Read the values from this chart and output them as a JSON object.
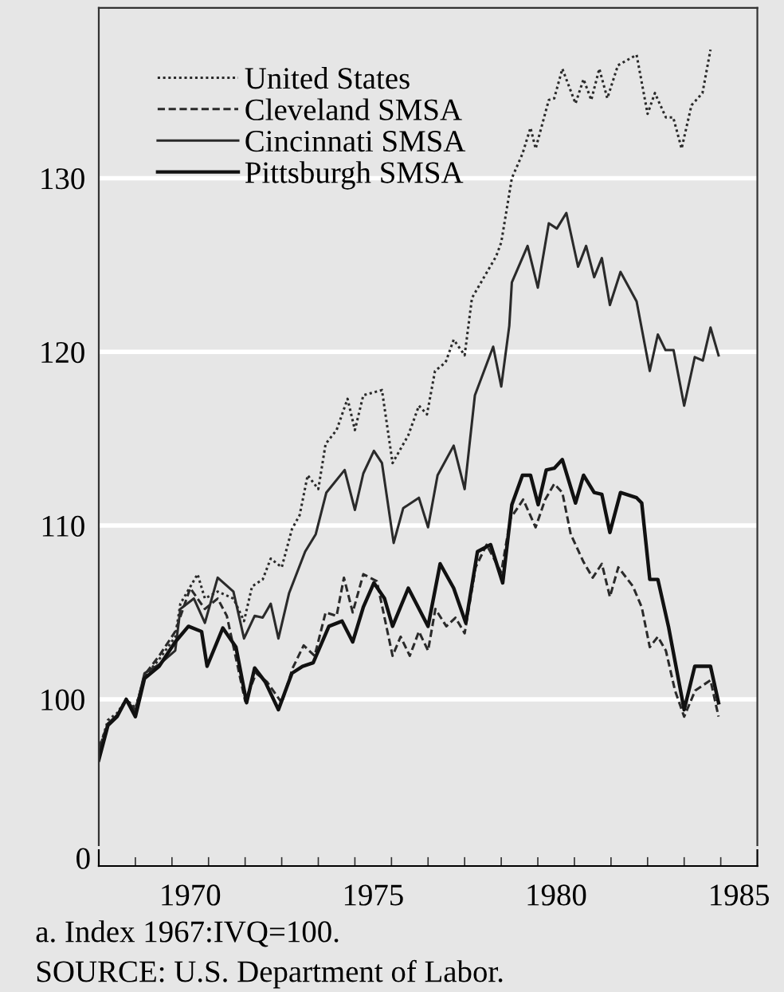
{
  "chart_data": [
    {
      "type": "line",
      "annotations": [
        "a. Index 1967:IVQ=100.",
        "SOURCE: U.S. Department of Labor."
      ],
      "xlim": [
        1968,
        1986
      ],
      "xticks": [
        {
          "value": 1969,
          "label": null
        },
        {
          "value": 1970,
          "label": null
        },
        {
          "value": 1970.5,
          "label": "1970"
        },
        {
          "value": 1971,
          "label": null
        },
        {
          "value": 1972,
          "label": null
        },
        {
          "value": 1973,
          "label": null
        },
        {
          "value": 1974,
          "label": null
        },
        {
          "value": 1975,
          "label": null
        },
        {
          "value": 1975.5,
          "label": "1975"
        },
        {
          "value": 1976,
          "label": null
        },
        {
          "value": 1977,
          "label": null
        },
        {
          "value": 1978,
          "label": null
        },
        {
          "value": 1979,
          "label": null
        },
        {
          "value": 1980,
          "label": null
        },
        {
          "value": 1980.5,
          "label": "1980"
        },
        {
          "value": 1981,
          "label": null
        },
        {
          "value": 1982,
          "label": null
        },
        {
          "value": 1983,
          "label": null
        },
        {
          "value": 1984,
          "label": null
        },
        {
          "value": 1985,
          "label": null
        },
        {
          "value": 1985.5,
          "label": "1985"
        }
      ],
      "ylim": [
        91.6,
        139.8
      ],
      "yticks": [
        100,
        110,
        120,
        130
      ],
      "grid": "y",
      "legend": "top left",
      "series": [
        {
          "name": "United States",
          "color": "#2a2a2a",
          "line_style": "dotted",
          "x": [
            1968.0,
            1968.25,
            1968.5,
            1968.75,
            1969.0,
            1969.25,
            1969.65,
            1970.09,
            1970.23,
            1970.7,
            1970.9,
            1971.25,
            1971.68,
            1971.97,
            1972.19,
            1972.48,
            1972.7,
            1973.0,
            1973.28,
            1973.49,
            1973.71,
            1974.0,
            1974.2,
            1974.5,
            1974.8,
            1975.0,
            1975.23,
            1975.74,
            1976.03,
            1976.46,
            1976.75,
            1976.97,
            1977.19,
            1977.48,
            1977.7,
            1978.0,
            1978.2,
            1978.86,
            1979.0,
            1979.29,
            1979.58,
            1979.8,
            1979.94,
            1980.3,
            1980.45,
            1980.67,
            1981.03,
            1981.25,
            1981.46,
            1981.68,
            1981.9,
            1982.19,
            1982.7,
            1983.0,
            1983.2,
            1983.5,
            1983.7,
            1983.93,
            1984.2,
            1984.5,
            1984.72
          ],
          "values": [
            97.0,
            98.8,
            99.2,
            100.0,
            99.5,
            101.3,
            102.3,
            103.6,
            105.5,
            107.2,
            105.8,
            106.2,
            105.8,
            104.5,
            106.5,
            106.9,
            108.1,
            107.6,
            109.8,
            110.6,
            112.9,
            112.1,
            114.7,
            115.5,
            117.3,
            115.5,
            117.5,
            117.8,
            113.6,
            115.2,
            116.9,
            116.4,
            118.9,
            119.4,
            120.7,
            119.8,
            123.1,
            125.5,
            126.3,
            130.0,
            131.4,
            132.9,
            131.7,
            134.5,
            134.6,
            136.3,
            134.3,
            135.7,
            134.5,
            136.3,
            134.6,
            136.5,
            137.1,
            133.7,
            134.9,
            133.5,
            133.5,
            131.7,
            134.2,
            134.9,
            137.4
          ]
        },
        {
          "name": "Cleveland SMSA",
          "color": "#2a2a2a",
          "line_style": "dashed",
          "x": [
            1968.0,
            1968.25,
            1968.5,
            1968.75,
            1969.0,
            1969.25,
            1969.65,
            1970.09,
            1970.5,
            1970.9,
            1971.25,
            1971.5,
            1972.0,
            1972.3,
            1972.6,
            1973.0,
            1973.3,
            1973.6,
            1973.9,
            1974.2,
            1974.5,
            1974.7,
            1974.94,
            1975.23,
            1975.6,
            1976.03,
            1976.25,
            1976.5,
            1976.75,
            1977.0,
            1977.2,
            1977.5,
            1977.75,
            1978.0,
            1978.3,
            1978.6,
            1979.0,
            1979.25,
            1979.6,
            1979.94,
            1980.2,
            1980.45,
            1980.67,
            1980.9,
            1981.25,
            1981.5,
            1981.75,
            1981.97,
            1982.2,
            1982.6,
            1982.84,
            1983.06,
            1983.28,
            1983.5,
            1983.75,
            1984.0,
            1984.3,
            1984.72,
            1984.94
          ],
          "values": [
            97.2,
            98.6,
            99.0,
            100.0,
            99.4,
            101.4,
            102.5,
            103.9,
            106.4,
            105.2,
            105.8,
            104.8,
            99.9,
            101.5,
            101.0,
            99.8,
            101.8,
            103.1,
            102.5,
            105.0,
            104.8,
            107.0,
            105.0,
            107.2,
            106.8,
            102.5,
            103.6,
            102.5,
            103.9,
            102.8,
            105.2,
            104.2,
            104.7,
            103.8,
            107.6,
            108.9,
            107.3,
            110.4,
            111.5,
            109.9,
            111.5,
            112.4,
            111.9,
            109.5,
            107.9,
            107.0,
            107.8,
            105.9,
            107.6,
            106.5,
            105.3,
            103.0,
            103.6,
            102.8,
            100.5,
            99.0,
            100.5,
            101.1,
            99.0
          ]
        },
        {
          "name": "Cincinnati SMSA",
          "color": "#2a2a2a",
          "line_style": "solid",
          "x": [
            1968.0,
            1968.25,
            1968.5,
            1968.75,
            1969.0,
            1969.25,
            1969.65,
            1970.09,
            1970.23,
            1970.6,
            1970.9,
            1971.25,
            1971.68,
            1971.97,
            1972.26,
            1972.48,
            1972.7,
            1972.91,
            1973.2,
            1973.64,
            1973.93,
            1974.22,
            1974.72,
            1975.0,
            1975.23,
            1975.52,
            1975.74,
            1976.06,
            1976.32,
            1976.75,
            1977.0,
            1977.26,
            1977.7,
            1978.0,
            1978.28,
            1978.78,
            1979.0,
            1979.22,
            1979.29,
            1979.72,
            1980.0,
            1980.3,
            1980.52,
            1980.78,
            1981.1,
            1981.32,
            1981.54,
            1981.75,
            1981.97,
            1982.26,
            1982.7,
            1983.06,
            1983.28,
            1983.49,
            1983.71,
            1984.0,
            1984.29,
            1984.51,
            1984.72,
            1984.94
          ],
          "values": [
            96.8,
            98.6,
            99.1,
            100.0,
            99.3,
            101.5,
            102.0,
            102.8,
            105.2,
            105.8,
            104.4,
            107.0,
            106.2,
            103.5,
            104.8,
            104.7,
            105.5,
            103.5,
            106.1,
            108.5,
            109.5,
            111.9,
            113.2,
            110.9,
            113.0,
            114.3,
            113.6,
            109.0,
            111.0,
            111.6,
            109.9,
            112.9,
            114.6,
            112.1,
            117.5,
            120.3,
            118.0,
            121.5,
            124.0,
            126.1,
            123.7,
            127.4,
            127.1,
            128.0,
            124.9,
            126.1,
            124.3,
            125.4,
            122.7,
            124.6,
            122.9,
            118.9,
            121.0,
            120.1,
            120.1,
            116.9,
            119.7,
            119.5,
            121.4,
            119.8
          ]
        },
        {
          "name": "Pittsburgh SMSA",
          "color": "#111111",
          "line_style": "solid",
          "x": [
            1968.0,
            1968.25,
            1968.5,
            1968.75,
            1969.0,
            1969.25,
            1969.65,
            1970.09,
            1970.45,
            1970.81,
            1970.96,
            1971.39,
            1971.75,
            1972.04,
            1972.26,
            1972.55,
            1972.91,
            1973.28,
            1973.57,
            1973.86,
            1974.29,
            1974.65,
            1974.94,
            1975.23,
            1975.52,
            1975.81,
            1976.03,
            1976.46,
            1977.0,
            1977.33,
            1977.7,
            1978.03,
            1978.35,
            1978.71,
            1979.04,
            1979.29,
            1979.58,
            1979.8,
            1980.01,
            1980.23,
            1980.45,
            1980.67,
            1981.03,
            1981.25,
            1981.54,
            1981.75,
            1981.97,
            1982.26,
            1982.7,
            1982.84,
            1983.06,
            1983.28,
            1983.57,
            1984.0,
            1984.29,
            1984.72,
            1984.94
          ],
          "values": [
            96.5,
            98.5,
            99.0,
            100.0,
            99.0,
            101.2,
            101.9,
            103.3,
            104.2,
            103.9,
            101.9,
            104.1,
            103.0,
            99.8,
            101.8,
            101.0,
            99.4,
            101.5,
            101.9,
            102.1,
            104.2,
            104.5,
            103.3,
            105.3,
            106.7,
            105.8,
            104.2,
            106.4,
            104.2,
            107.8,
            106.4,
            104.4,
            108.5,
            108.9,
            106.7,
            111.2,
            112.9,
            112.9,
            111.2,
            113.2,
            113.3,
            113.8,
            111.3,
            112.9,
            111.9,
            111.8,
            109.6,
            111.9,
            111.6,
            111.3,
            106.9,
            106.9,
            104.2,
            99.4,
            101.9,
            101.9,
            99.8
          ]
        }
      ]
    },
    {
      "type": "other",
      "annotations": [
        "0"
      ]
    }
  ]
}
